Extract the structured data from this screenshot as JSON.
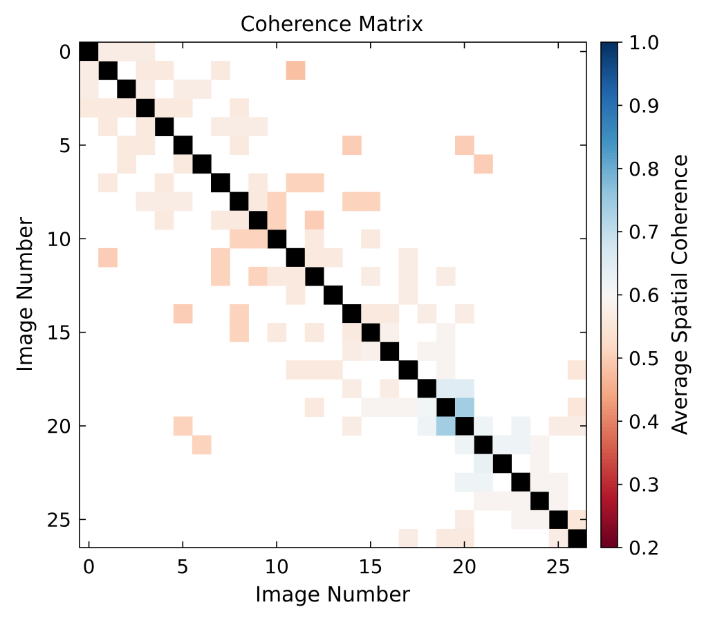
{
  "chart_data": {
    "type": "heatmap",
    "title": "Coherence Matrix",
    "xlabel": "Image Number",
    "ylabel": "Image Number",
    "n": 27,
    "x_ticks": [
      0,
      5,
      10,
      15,
      20,
      25
    ],
    "y_ticks": [
      0,
      5,
      10,
      15,
      20,
      25
    ],
    "colorbar": {
      "label": "Average Spatial Coherence",
      "range": [
        0.2,
        1.0
      ],
      "ticks": [
        0.2,
        0.3,
        0.4,
        0.5,
        0.6,
        0.7,
        0.8,
        0.9,
        1.0
      ],
      "mask_below": 0.7,
      "scheme": "RdBu"
    },
    "diagonal_color": "#000000",
    "cells": [
      [
        0,
        1,
        0.57
      ],
      [
        0,
        2,
        0.57
      ],
      [
        0,
        3,
        0.57
      ],
      [
        1,
        0,
        0.57
      ],
      [
        1,
        3,
        0.56
      ],
      [
        1,
        4,
        0.56
      ],
      [
        1,
        7,
        0.56
      ],
      [
        1,
        11,
        0.48
      ],
      [
        2,
        0,
        0.57
      ],
      [
        2,
        3,
        0.57
      ],
      [
        2,
        5,
        0.57
      ],
      [
        2,
        6,
        0.57
      ],
      [
        3,
        0,
        0.56
      ],
      [
        3,
        1,
        0.56
      ],
      [
        3,
        2,
        0.56
      ],
      [
        3,
        4,
        0.56
      ],
      [
        3,
        5,
        0.56
      ],
      [
        3,
        8,
        0.56
      ],
      [
        4,
        1,
        0.56
      ],
      [
        4,
        3,
        0.56
      ],
      [
        4,
        7,
        0.57
      ],
      [
        4,
        8,
        0.57
      ],
      [
        4,
        9,
        0.57
      ],
      [
        5,
        2,
        0.56
      ],
      [
        5,
        3,
        0.56
      ],
      [
        5,
        8,
        0.56
      ],
      [
        5,
        14,
        0.5
      ],
      [
        5,
        20,
        0.5
      ],
      [
        6,
        2,
        0.56
      ],
      [
        6,
        5,
        0.56
      ],
      [
        6,
        21,
        0.5
      ],
      [
        7,
        1,
        0.56
      ],
      [
        7,
        4,
        0.56
      ],
      [
        7,
        9,
        0.56
      ],
      [
        7,
        11,
        0.51
      ],
      [
        7,
        12,
        0.51
      ],
      [
        8,
        3,
        0.57
      ],
      [
        8,
        4,
        0.57
      ],
      [
        8,
        5,
        0.57
      ],
      [
        8,
        9,
        0.56
      ],
      [
        8,
        10,
        0.51
      ],
      [
        8,
        14,
        0.51
      ],
      [
        8,
        15,
        0.51
      ],
      [
        9,
        4,
        0.56
      ],
      [
        9,
        7,
        0.56
      ],
      [
        9,
        8,
        0.56
      ],
      [
        9,
        10,
        0.51
      ],
      [
        9,
        12,
        0.5
      ],
      [
        10,
        8,
        0.51
      ],
      [
        10,
        9,
        0.51
      ],
      [
        10,
        12,
        0.56
      ],
      [
        10,
        15,
        0.56
      ],
      [
        11,
        1,
        0.5
      ],
      [
        11,
        7,
        0.51
      ],
      [
        11,
        12,
        0.56
      ],
      [
        11,
        13,
        0.56
      ],
      [
        11,
        17,
        0.57
      ],
      [
        12,
        7,
        0.51
      ],
      [
        12,
        9,
        0.51
      ],
      [
        12,
        10,
        0.56
      ],
      [
        12,
        11,
        0.56
      ],
      [
        12,
        15,
        0.57
      ],
      [
        12,
        17,
        0.57
      ],
      [
        12,
        19,
        0.57
      ],
      [
        13,
        11,
        0.56
      ],
      [
        13,
        17,
        0.57
      ],
      [
        14,
        5,
        0.5
      ],
      [
        14,
        8,
        0.51
      ],
      [
        14,
        15,
        0.56
      ],
      [
        14,
        16,
        0.56
      ],
      [
        14,
        18,
        0.57
      ],
      [
        14,
        20,
        0.57
      ],
      [
        15,
        8,
        0.51
      ],
      [
        15,
        10,
        0.56
      ],
      [
        15,
        12,
        0.56
      ],
      [
        15,
        14,
        0.56
      ],
      [
        15,
        16,
        0.58
      ],
      [
        15,
        19,
        0.59
      ],
      [
        16,
        14,
        0.57
      ],
      [
        16,
        15,
        0.58
      ],
      [
        16,
        18,
        0.59
      ],
      [
        16,
        19,
        0.59
      ],
      [
        17,
        11,
        0.56
      ],
      [
        17,
        12,
        0.56
      ],
      [
        17,
        13,
        0.56
      ],
      [
        17,
        19,
        0.59
      ],
      [
        17,
        26,
        0.55
      ],
      [
        18,
        14,
        0.57
      ],
      [
        18,
        16,
        0.57
      ],
      [
        18,
        19,
        0.65
      ],
      [
        18,
        20,
        0.65
      ],
      [
        19,
        12,
        0.56
      ],
      [
        19,
        15,
        0.59
      ],
      [
        19,
        16,
        0.59
      ],
      [
        19,
        17,
        0.59
      ],
      [
        19,
        18,
        0.61
      ],
      [
        19,
        20,
        0.74
      ],
      [
        19,
        26,
        0.55
      ],
      [
        20,
        5,
        0.51
      ],
      [
        20,
        14,
        0.57
      ],
      [
        20,
        18,
        0.62
      ],
      [
        20,
        19,
        0.74
      ],
      [
        20,
        21,
        0.62
      ],
      [
        20,
        23,
        0.62
      ],
      [
        20,
        25,
        0.57
      ],
      [
        20,
        26,
        0.57
      ],
      [
        21,
        6,
        0.51
      ],
      [
        21,
        20,
        0.62
      ],
      [
        21,
        22,
        0.62
      ],
      [
        21,
        23,
        0.62
      ],
      [
        21,
        24,
        0.59
      ],
      [
        22,
        21,
        0.63
      ],
      [
        22,
        24,
        0.59
      ],
      [
        23,
        20,
        0.62
      ],
      [
        23,
        21,
        0.62
      ],
      [
        23,
        24,
        0.59
      ],
      [
        23,
        25,
        0.59
      ],
      [
        24,
        21,
        0.59
      ],
      [
        24,
        22,
        0.59
      ],
      [
        24,
        23,
        0.59
      ],
      [
        24,
        25,
        0.59
      ],
      [
        25,
        20,
        0.57
      ],
      [
        25,
        23,
        0.59
      ],
      [
        25,
        24,
        0.59
      ],
      [
        25,
        26,
        0.55
      ],
      [
        26,
        17,
        0.57
      ],
      [
        26,
        19,
        0.56
      ],
      [
        26,
        20,
        0.56
      ],
      [
        26,
        25,
        0.57
      ]
    ]
  }
}
